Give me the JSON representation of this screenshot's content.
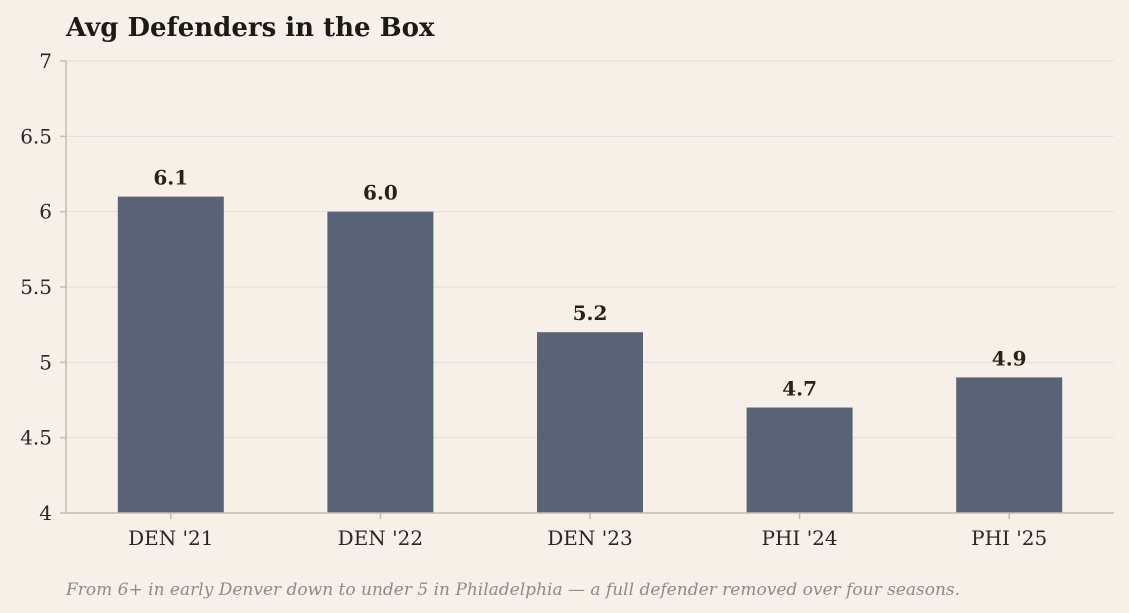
{
  "chart_data": {
    "type": "bar",
    "title": "Avg Defenders in the Box",
    "categories": [
      "DEN '21",
      "DEN '22",
      "DEN '23",
      "PHI '24",
      "PHI '25"
    ],
    "values": [
      6.1,
      6.0,
      5.2,
      4.7,
      4.9
    ],
    "data_labels": [
      "6.1",
      "6.0",
      "5.2",
      "4.7",
      "4.9"
    ],
    "ylim": [
      4,
      7
    ],
    "yticks": [
      4,
      4.5,
      5,
      5.5,
      6,
      6.5,
      7
    ],
    "ytick_labels": [
      "4",
      "4.5",
      "5",
      "5.5",
      "6",
      "6.5",
      "7"
    ],
    "xlabel": "",
    "ylabel": "",
    "grid": true,
    "bar_color": "#5a6375",
    "caption": "From 6+ in early Denver down to under 5 in Philadelphia — a full defender removed over four seasons."
  }
}
